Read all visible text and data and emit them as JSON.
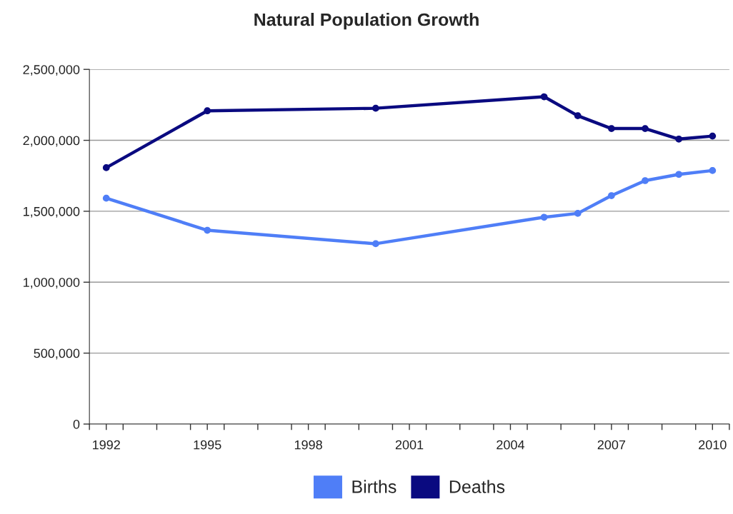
{
  "chart_data": {
    "type": "line",
    "title": "Natural Population Growth",
    "x": [
      1992,
      1995,
      2000,
      2005,
      2006,
      2007,
      2008,
      2009,
      2010
    ],
    "series": [
      {
        "name": "Births",
        "color": "#4f7ef7",
        "values": [
          1592000,
          1366000,
          1271000,
          1458000,
          1485000,
          1610000,
          1716000,
          1760000,
          1787000
        ]
      },
      {
        "name": "Deaths",
        "color": "#0a0a80",
        "values": [
          1807000,
          2208000,
          2226000,
          2307000,
          2173000,
          2083000,
          2083000,
          2009000,
          2030000
        ]
      }
    ],
    "xlim": [
      1991.5,
      2010.5
    ],
    "xticks": [
      {
        "value": 1991.5,
        "label": null
      },
      {
        "value": 1992,
        "label": "1992"
      },
      {
        "value": 1992.5,
        "label": null
      },
      {
        "value": 1993.5,
        "label": null
      },
      {
        "value": 1994.5,
        "label": null
      },
      {
        "value": 1995,
        "label": "1995"
      },
      {
        "value": 1995.5,
        "label": null
      },
      {
        "value": 1996.5,
        "label": null
      },
      {
        "value": 1997.5,
        "label": null
      },
      {
        "value": 1998,
        "label": "1998"
      },
      {
        "value": 1998.5,
        "label": null
      },
      {
        "value": 1999.5,
        "label": null
      },
      {
        "value": 2000.5,
        "label": null
      },
      {
        "value": 2001,
        "label": "2001"
      },
      {
        "value": 2001.5,
        "label": null
      },
      {
        "value": 2002.5,
        "label": null
      },
      {
        "value": 2003.5,
        "label": null
      },
      {
        "value": 2004,
        "label": "2004"
      },
      {
        "value": 2004.5,
        "label": null
      },
      {
        "value": 2005.5,
        "label": null
      },
      {
        "value": 2006.5,
        "label": null
      },
      {
        "value": 2007,
        "label": "2007"
      },
      {
        "value": 2007.5,
        "label": null
      },
      {
        "value": 2008.5,
        "label": null
      },
      {
        "value": 2009.5,
        "label": null
      },
      {
        "value": 2010,
        "label": "2010"
      },
      {
        "value": 2010.5,
        "label": null
      }
    ],
    "ylim": [
      0,
      2500000
    ],
    "yticks": [
      {
        "value": 0,
        "label": "0"
      },
      {
        "value": 500000,
        "label": "500,000"
      },
      {
        "value": 1000000,
        "label": "1,000,000"
      },
      {
        "value": 1500000,
        "label": "1,500,000"
      },
      {
        "value": 2000000,
        "label": "2,000,000"
      },
      {
        "value": 2500000,
        "label": "2,500,000"
      }
    ],
    "grid": "y",
    "legend": "bottom",
    "marker": "circle",
    "line_style": "solid"
  }
}
